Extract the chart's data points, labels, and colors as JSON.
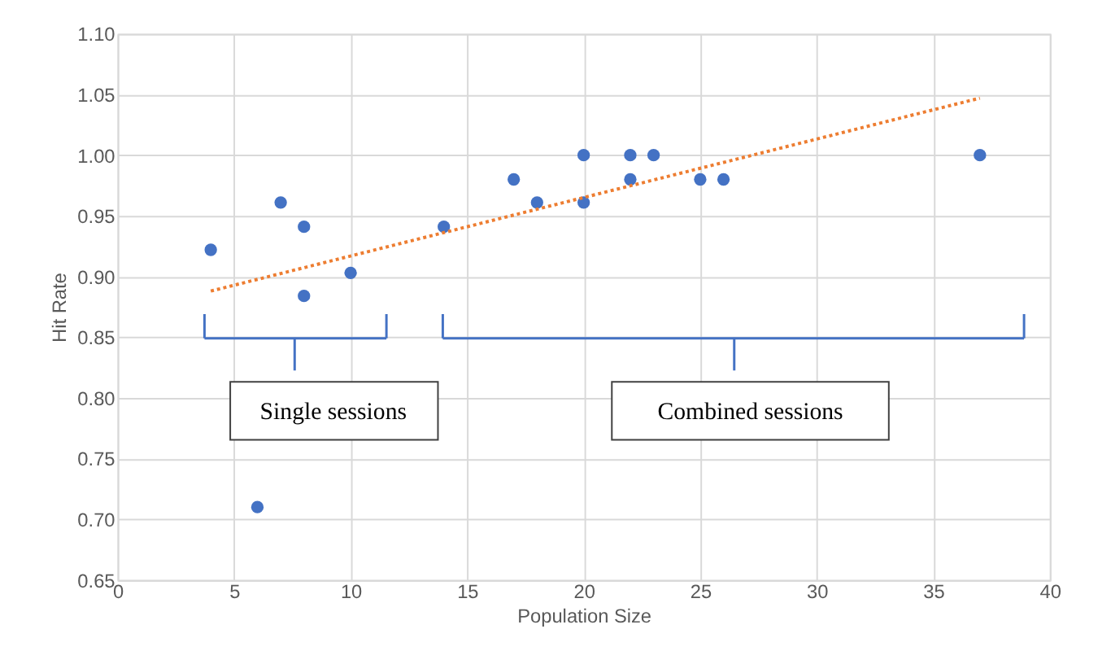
{
  "chart_data": {
    "type": "scatter",
    "xlabel": "Population Size",
    "ylabel": "Hit Rate",
    "xlim": [
      0,
      40
    ],
    "xticks": [
      0,
      5,
      10,
      15,
      20,
      25,
      30,
      35,
      40
    ],
    "ylim": [
      0.65,
      1.1
    ],
    "yticks": [
      {
        "value": 0.65,
        "label": "0.65"
      },
      {
        "value": 0.7,
        "label": "0.70"
      },
      {
        "value": 0.75,
        "label": "0.75"
      },
      {
        "value": 0.8,
        "label": "0.80"
      },
      {
        "value": 0.85,
        "label": "0.85"
      },
      {
        "value": 0.9,
        "label": "0.90"
      },
      {
        "value": 0.95,
        "label": "0.95"
      },
      {
        "value": 1.0,
        "label": "1.00"
      },
      {
        "value": 1.05,
        "label": "1.05"
      },
      {
        "value": 1.1,
        "label": "1.10"
      }
    ],
    "grid": true,
    "series": [
      {
        "marker": "circle",
        "color": "#4472c4",
        "x": [
          4,
          6,
          7,
          8,
          8,
          10,
          14,
          17,
          18,
          20,
          20,
          22,
          22,
          23,
          25,
          26,
          37
        ],
        "values": [
          0.922,
          0.71,
          0.961,
          0.941,
          0.884,
          0.903,
          0.941,
          0.98,
          0.961,
          1.0,
          0.961,
          1.0,
          0.98,
          1.0,
          0.98,
          0.98,
          1.0
        ]
      },
      {
        "type": "line",
        "color": "#ed7d31",
        "line_style": "dotted",
        "x": [
          4,
          37
        ],
        "values": [
          0.888,
          1.047
        ]
      }
    ],
    "annotations": [
      "Single sessions",
      "Combined sessions"
    ]
  }
}
